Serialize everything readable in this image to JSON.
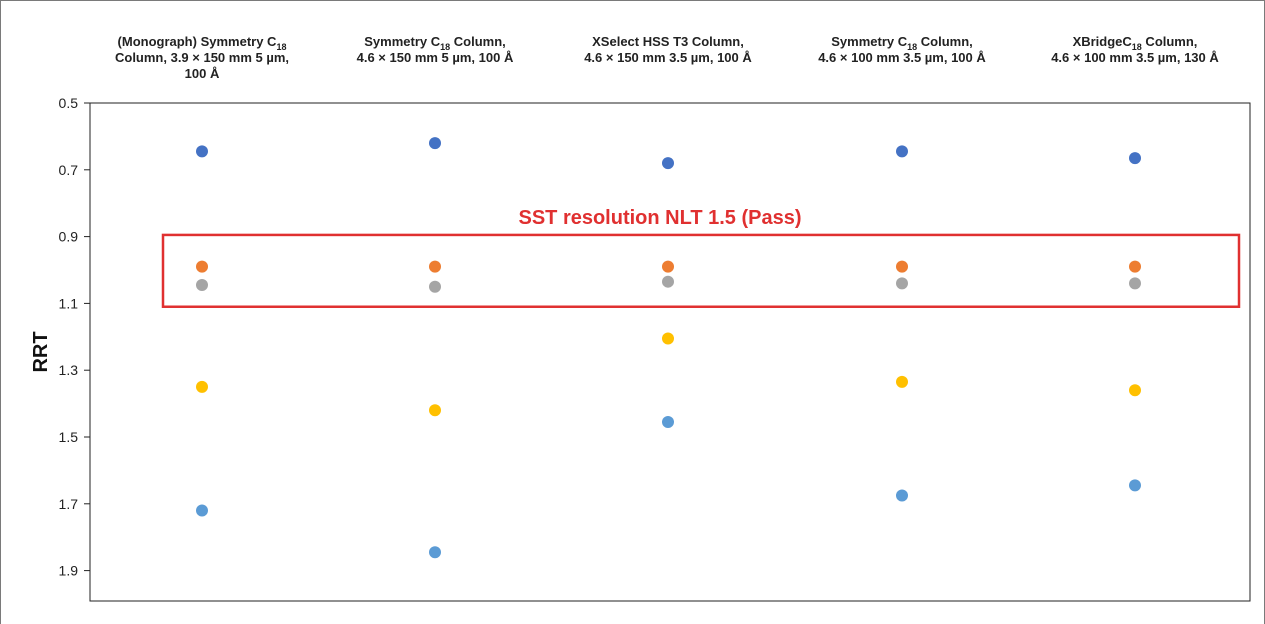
{
  "chart_data": {
    "type": "scatter",
    "ylabel": "RRT",
    "y_axis_inverted": true,
    "ylim": [
      0.5,
      2.0
    ],
    "yticks": [
      "0.5",
      "0.7",
      "0.9",
      "1.1",
      "1.3",
      "1.5",
      "1.7",
      "1.9"
    ],
    "ytick_values": [
      0.5,
      0.7,
      0.9,
      1.1,
      1.3,
      1.5,
      1.7,
      1.9
    ],
    "grid": false,
    "categories": [
      {
        "line1_a": "(Monograph) Symmetry C",
        "line1_sub": "18",
        "line1_b": "",
        "line2": "Column, 3.9 × 150 mm 5 µm,",
        "line3": "100 Å"
      },
      {
        "line1_a": "Symmetry C",
        "line1_sub": "18",
        "line1_b": " Column,",
        "line2": "4.6 × 150 mm 5 µm, 100 Å",
        "line3": ""
      },
      {
        "line1_a": "XSelect HSS T3 Column,",
        "line1_sub": "",
        "line1_b": "",
        "line2": "4.6 × 150 mm 3.5 µm, 100 Å",
        "line3": ""
      },
      {
        "line1_a": "Symmetry C",
        "line1_sub": "18",
        "line1_b": " Column,",
        "line2": "4.6 × 100 mm 3.5 µm, 100 Å",
        "line3": ""
      },
      {
        "line1_a": "XBridgeC",
        "line1_sub": "18",
        "line1_b": " Column,",
        "line2": "4.6 × 100 mm 3.5 µm, 130 Å",
        "line3": ""
      }
    ],
    "series": [
      {
        "color": "#4472c4",
        "values": [
          0.645,
          0.62,
          0.68,
          0.645,
          0.665
        ]
      },
      {
        "color": "#ed7d31",
        "values": [
          0.99,
          0.99,
          0.99,
          0.99,
          0.99
        ]
      },
      {
        "color": "#a5a5a5",
        "values": [
          1.045,
          1.05,
          1.035,
          1.04,
          1.04
        ]
      },
      {
        "color": "#ffc000",
        "values": [
          1.35,
          1.42,
          1.205,
          1.335,
          1.36
        ]
      },
      {
        "color": "#5b9bd5",
        "values": [
          1.72,
          1.845,
          1.455,
          1.675,
          1.645
        ]
      }
    ],
    "annotations": [
      {
        "text": "SST resolution NLT 1.5 (Pass)",
        "color": "#e03030",
        "y_range": [
          0.895,
          1.11
        ]
      }
    ]
  }
}
